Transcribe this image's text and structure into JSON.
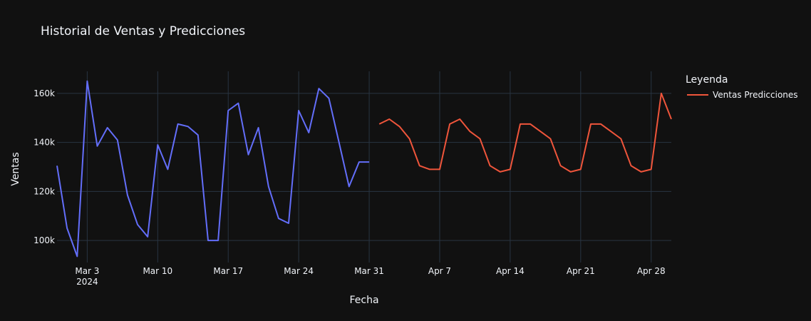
{
  "chart_data": {
    "type": "line",
    "title": "Historial de Ventas y Predicciones",
    "xlabel": "Fecha",
    "ylabel": "Ventas",
    "ylim": [
      91000,
      169000
    ],
    "x_range": [
      "2024-02-29",
      "2024-04-30"
    ],
    "x_ticks": [
      {
        "date": "2024-03-03",
        "label": "Mar 3",
        "sub": "2024"
      },
      {
        "date": "2024-03-10",
        "label": "Mar 10",
        "sub": ""
      },
      {
        "date": "2024-03-17",
        "label": "Mar 17",
        "sub": ""
      },
      {
        "date": "2024-03-24",
        "label": "Mar 24",
        "sub": ""
      },
      {
        "date": "2024-03-31",
        "label": "Mar 31",
        "sub": ""
      },
      {
        "date": "2024-04-07",
        "label": "Apr 7",
        "sub": ""
      },
      {
        "date": "2024-04-14",
        "label": "Apr 14",
        "sub": ""
      },
      {
        "date": "2024-04-21",
        "label": "Apr 21",
        "sub": ""
      },
      {
        "date": "2024-04-28",
        "label": "Apr 28",
        "sub": ""
      }
    ],
    "y_ticks": [
      {
        "value": 100000,
        "label": "100k"
      },
      {
        "value": 120000,
        "label": "120k"
      },
      {
        "value": 140000,
        "label": "140k"
      },
      {
        "value": 160000,
        "label": "160k"
      }
    ],
    "grid": true,
    "legend_title": "Leyenda",
    "legend_position": "right",
    "background": "#111111",
    "grid_color": "#283442",
    "series": [
      {
        "name": "",
        "color": "#636efa",
        "in_legend": false,
        "x": [
          "2024-02-29",
          "2024-03-01",
          "2024-03-02",
          "2024-03-03",
          "2024-03-04",
          "2024-03-05",
          "2024-03-06",
          "2024-03-07",
          "2024-03-08",
          "2024-03-09",
          "2024-03-10",
          "2024-03-11",
          "2024-03-12",
          "2024-03-13",
          "2024-03-14",
          "2024-03-15",
          "2024-03-16",
          "2024-03-17",
          "2024-03-18",
          "2024-03-19",
          "2024-03-20",
          "2024-03-21",
          "2024-03-22",
          "2024-03-23",
          "2024-03-24",
          "2024-03-25",
          "2024-03-26",
          "2024-03-27",
          "2024-03-28",
          "2024-03-29",
          "2024-03-30",
          "2024-03-31"
        ],
        "y": [
          130500,
          105000,
          93500,
          165000,
          138500,
          146000,
          141000,
          118500,
          106500,
          101500,
          139000,
          129000,
          147500,
          146500,
          143000,
          100000,
          100000,
          153000,
          156000,
          135000,
          146000,
          122000,
          109000,
          107000,
          153000,
          144000,
          162000,
          158000,
          140000,
          122000,
          132000,
          132000
        ]
      },
      {
        "name": "Ventas Predicciones",
        "color": "#ef553b",
        "in_legend": true,
        "x": [
          "2024-04-01",
          "2024-04-02",
          "2024-04-03",
          "2024-04-04",
          "2024-04-05",
          "2024-04-06",
          "2024-04-07",
          "2024-04-08",
          "2024-04-09",
          "2024-04-10",
          "2024-04-11",
          "2024-04-12",
          "2024-04-13",
          "2024-04-14",
          "2024-04-15",
          "2024-04-16",
          "2024-04-17",
          "2024-04-18",
          "2024-04-19",
          "2024-04-20",
          "2024-04-21",
          "2024-04-22",
          "2024-04-23",
          "2024-04-24",
          "2024-04-25",
          "2024-04-26",
          "2024-04-27",
          "2024-04-28",
          "2024-04-29",
          "2024-04-30"
        ],
        "y": [
          147500,
          149500,
          146500,
          141500,
          130500,
          129000,
          129000,
          147500,
          149500,
          144500,
          141500,
          130500,
          128000,
          129000,
          147500,
          147500,
          144500,
          141500,
          130500,
          128000,
          129000,
          147500,
          147500,
          144500,
          141500,
          130500,
          128000,
          129000,
          160000,
          149500
        ]
      }
    ]
  }
}
